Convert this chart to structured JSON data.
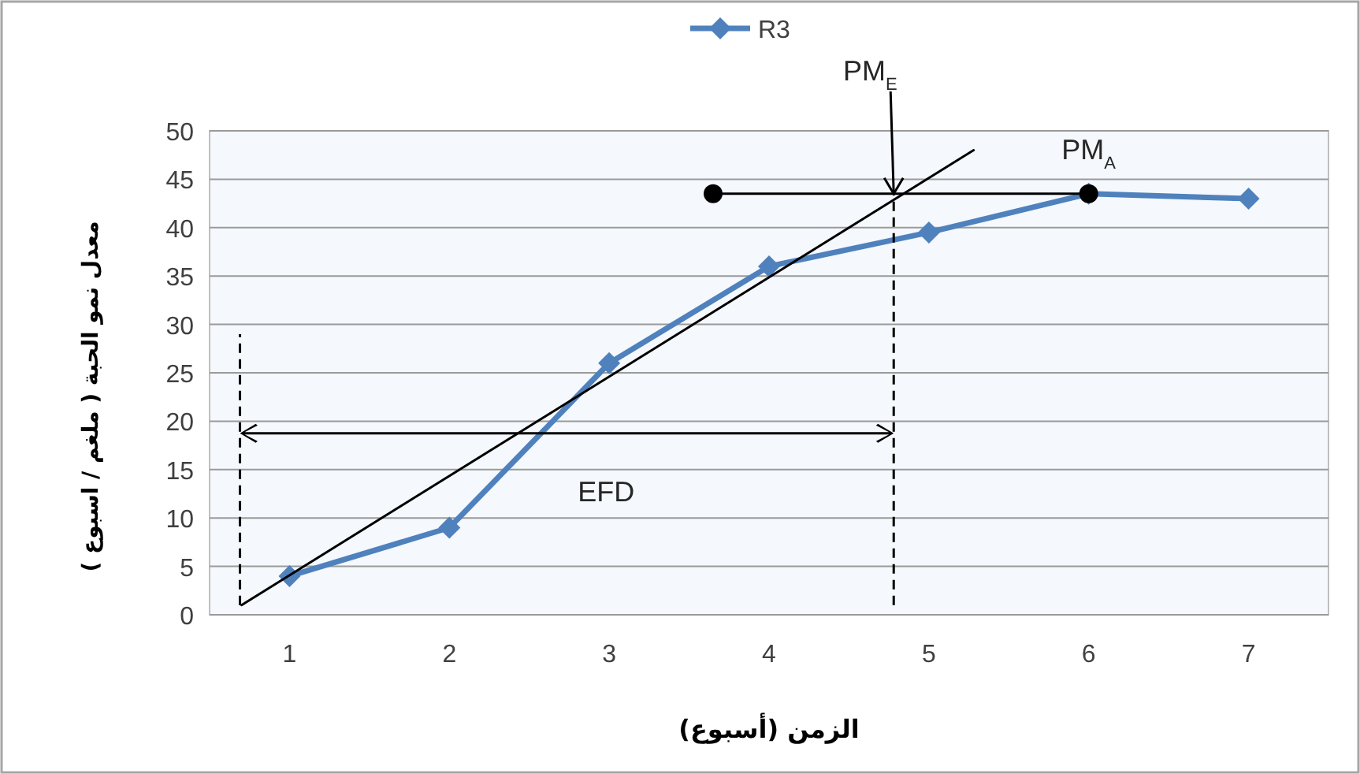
{
  "chart_data": {
    "type": "line",
    "xlabel": "الزمن (أسبوع)",
    "ylabel": "معدل نمو الحبة ( ملغم / اسبوع )",
    "xlim": [
      0.5,
      7.5
    ],
    "xticks": [
      1,
      2,
      3,
      4,
      5,
      6,
      7
    ],
    "ylim": [
      0,
      50
    ],
    "yticks": [
      0,
      5,
      10,
      15,
      20,
      25,
      30,
      35,
      40,
      45,
      50
    ],
    "grid": "y",
    "legend": "top",
    "series": [
      {
        "name": "R3",
        "color": "#4f81bd",
        "marker": "diamond",
        "x": [
          1,
          2,
          3,
          4,
          5,
          6,
          7
        ],
        "values": [
          4,
          9,
          26,
          36,
          39.5,
          43.5,
          43
        ]
      },
      {
        "color": "#000000",
        "marker": "none",
        "x": [
          0.7,
          5.28
        ],
        "values": [
          1,
          48
        ]
      },
      {
        "color": "#000000",
        "marker": "circle",
        "x": [
          3.65,
          6
        ],
        "values": [
          43.5,
          43.5
        ]
      },
      {
        "color": "#000000",
        "marker": "none",
        "line_style": "dashed",
        "x": [
          0.69,
          0.69
        ],
        "values": [
          1,
          29
        ]
      },
      {
        "color": "#000000",
        "marker": "none",
        "line_style": "dashed",
        "x": [
          4.78,
          4.78
        ],
        "values": [
          1,
          43.5
        ]
      }
    ],
    "annotations": [
      "EFD",
      {
        "text": "PM$_{E}$",
        "x": 4.78,
        "y": 43.5
      },
      {
        "text": "PM$_{A}$",
        "x": 6,
        "y": 43.5
      }
    ]
  }
}
